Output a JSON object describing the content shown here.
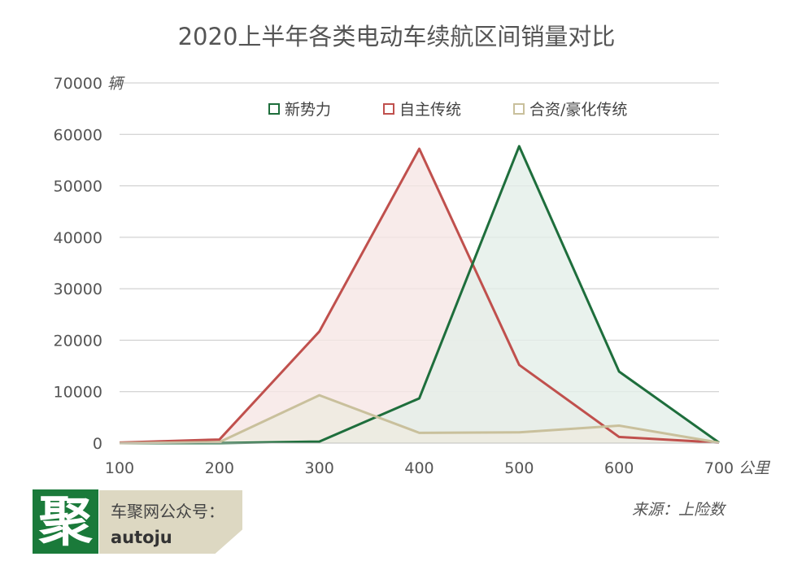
{
  "title": "2020上半年各类电动车续航区间销量对比",
  "source": "来源：上险数",
  "branding": {
    "logo_char": "聚",
    "line1": "车聚网公众号：",
    "line2": "autoju"
  },
  "chart_data": {
    "type": "area",
    "title": "2020上半年各类电动车续航区间销量对比",
    "x": [
      100,
      200,
      300,
      400,
      500,
      600,
      700
    ],
    "x_unit": "公里",
    "y_unit": "辆",
    "ylim": [
      0,
      70000
    ],
    "yticks": [
      0,
      10000,
      20000,
      30000,
      40000,
      50000,
      60000,
      70000
    ],
    "grid": true,
    "legend_position": "top",
    "series": [
      {
        "name": "新势力",
        "color": "#1e6e3c",
        "fill": "#e3efe8",
        "values": [
          0,
          0,
          300,
          8700,
          57700,
          13900,
          100
        ]
      },
      {
        "name": "自主传统",
        "color": "#c0504d",
        "fill": "#f6e6e5",
        "values": [
          100,
          700,
          21700,
          57200,
          15200,
          1200,
          100
        ]
      },
      {
        "name": "合资/豪化传统",
        "color": "#c9c09c",
        "fill": "#eeebe0",
        "values": [
          0,
          200,
          9300,
          2000,
          2100,
          3400,
          100
        ]
      }
    ]
  }
}
